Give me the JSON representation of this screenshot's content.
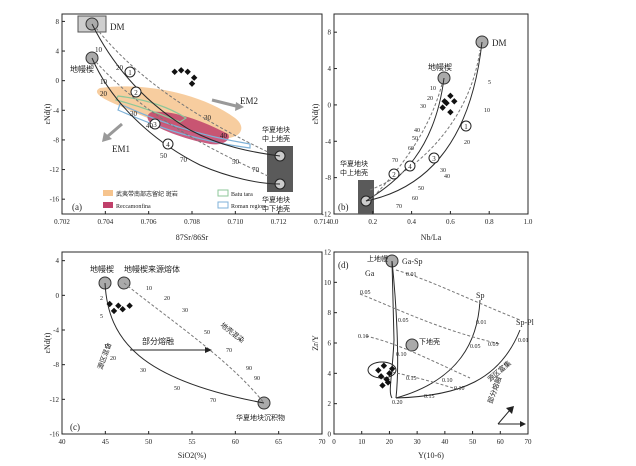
{
  "figure": {
    "panels": [
      {
        "id": "a",
        "panel_label": "(a)",
        "xlabel": "87Sr/86Sr",
        "ylabel": "εNd(t)",
        "xlim": [
          0.702,
          0.714
        ],
        "ylim": [
          -18,
          9
        ],
        "x_ticks": [
          0.702,
          0.704,
          0.706,
          0.708,
          0.71,
          0.712,
          0.714
        ],
        "x_tick_labels": [
          "0.702",
          "0.704",
          "0.706",
          "0.708",
          "0.710",
          "0.712",
          "0.714"
        ],
        "y_ticks": [
          8,
          4,
          0,
          -4,
          -8,
          -12,
          -16
        ],
        "y_tick_labels": [
          "8",
          "4",
          "0",
          "-4",
          "-8",
          "-12",
          "-16"
        ],
        "labels": {
          "dm": "DM",
          "mantle": "地幔楔",
          "em2": "EM2",
          "em1": "EM1",
          "crust_mid_upper": "华夏地块\n中上地壳",
          "crust_lower": "华夏地块\n中下地壳"
        },
        "legend": [
          {
            "label": "武夷带南部志留纪 斑岩",
            "color": "#f6c48e"
          },
          {
            "label": "Batu tara",
            "color": "#8ec79a"
          },
          {
            "label": "Reccamonfina",
            "color": "#c0406a"
          },
          {
            "label": "Roman region",
            "color": "#7fb2d8"
          }
        ],
        "samples": {
          "x": [
            0.7072,
            0.7075,
            0.7078,
            0.7081,
            0.708
          ],
          "y": [
            1.2,
            1.4,
            1.2,
            0.4,
            -0.4
          ]
        },
        "mixing_curves": [
          {
            "ticks": [
              "10",
              "20",
              "30",
              "40",
              "50",
              "70"
            ]
          },
          {
            "ticks": [
              "10",
              "20",
              "30",
              "40",
              "50",
              "70"
            ]
          }
        ],
        "mixing_circles": [
          "1",
          "2",
          "3",
          "4"
        ]
      },
      {
        "id": "b",
        "panel_label": "(b)",
        "xlabel": "Nb/La",
        "ylabel": "εNd(t)",
        "xlim": [
          0.0,
          1.0
        ],
        "ylim": [
          -12,
          10
        ],
        "x_ticks": [
          0.0,
          0.2,
          0.4,
          0.6,
          0.8,
          1.0
        ],
        "x_tick_labels": [
          "0.0",
          "0.2",
          "0.4",
          "0.6",
          "0.8",
          "1.0"
        ],
        "y_ticks": [
          8,
          4,
          0,
          -4,
          -8,
          -12
        ],
        "y_tick_labels": [
          "8",
          "4",
          "0",
          "-4",
          "-8",
          "-12"
        ],
        "labels": {
          "dm": "DM",
          "mantle": "地幔楔",
          "crust": "华夏地块\n中上地壳"
        },
        "samples": {
          "x": [
            0.56,
            0.58,
            0.6,
            0.62,
            0.57,
            0.6
          ],
          "y": [
            -0.3,
            0.2,
            -0.8,
            0.4,
            0.4,
            1.0
          ]
        },
        "mixing_curves": [
          {
            "ticks": [
              "10",
              "20",
              "30",
              "40",
              "50",
              "60",
              "70"
            ]
          },
          {
            "ticks": [
              "5",
              "10",
              "20",
              "30",
              "40",
              "50",
              "60",
              "70"
            ]
          }
        ],
        "mixing_circles": [
          "1",
          "2",
          "3",
          "4"
        ]
      },
      {
        "id": "c",
        "panel_label": "(c)",
        "xlabel": "SiO2(%)",
        "ylabel": "εNd(t)",
        "xlim": [
          40,
          70
        ],
        "ylim": [
          -16,
          5
        ],
        "x_ticks": [
          40,
          45,
          50,
          55,
          60,
          65,
          70
        ],
        "x_tick_labels": [
          "40",
          "45",
          "50",
          "55",
          "60",
          "65",
          "70"
        ],
        "y_ticks": [
          4,
          0,
          -4,
          -8,
          -12,
          -16
        ],
        "y_tick_labels": [
          "4",
          "0",
          "-4",
          "-8",
          "-12",
          "-16"
        ],
        "labels": {
          "mantle": "地幔楔",
          "mantle_melt": "地幔楔来源熔体",
          "partial_melting": "部分熔融",
          "crust_mixing": "地壳混染",
          "source_mixing": "源区混合",
          "sediment": "华夏地块沉积物"
        },
        "samples": {
          "x": [
            45.5,
            46.0,
            46.5,
            47.0,
            47.8
          ],
          "y": [
            -1.0,
            -1.8,
            -1.2,
            -1.6,
            -1.2
          ]
        },
        "mixing_curves": [
          {
            "ticks": [
              "2",
              "5",
              "15",
              "20",
              "30",
              "50",
              "70",
              "90"
            ]
          },
          {
            "ticks": [
              "10",
              "20",
              "30",
              "50",
              "70",
              "90"
            ]
          }
        ]
      },
      {
        "id": "d",
        "panel_label": "(d)",
        "xlabel": "Y(10-6)",
        "ylabel": "Zr/Y",
        "xlim": [
          0,
          70
        ],
        "ylim": [
          0,
          12
        ],
        "x_ticks": [
          0,
          10,
          20,
          30,
          40,
          50,
          60,
          70
        ],
        "x_tick_labels": [
          "0",
          "10",
          "20",
          "30",
          "40",
          "50",
          "60",
          "70"
        ],
        "y_ticks": [
          0,
          2,
          4,
          6,
          8,
          10,
          12
        ],
        "y_tick_labels": [
          "0",
          "2",
          "4",
          "6",
          "8",
          "10",
          "12"
        ],
        "labels": {
          "upper_mantle": "上地幔",
          "ga_sp": "Ga-Sp",
          "ga": "Ga",
          "sp": "Sp",
          "sp_pl": "Sp-Pl",
          "lower_crust": "下地壳",
          "source_enrich": "源区富集",
          "partial_melt": "部分熔融"
        },
        "samples": {
          "x": [
            16,
            17,
            18,
            19,
            20,
            21,
            17.5,
            19.5
          ],
          "y": [
            4.2,
            3.8,
            4.5,
            3.6,
            4.0,
            4.3,
            3.2,
            3.4
          ]
        },
        "melt_fraction_labels": [
          "0.01",
          "0.05",
          "0.10",
          "0.15",
          "0.20"
        ]
      }
    ]
  },
  "colors": {
    "line": "#2a2a2a",
    "dashed": "#777777",
    "box_dark": "#5a5a5a",
    "box_light": "#cfcfcf",
    "sample": "#111111",
    "field_orange": "#f6c48e",
    "field_red": "#c0406a",
    "field_green": "#8ec79a",
    "field_blue": "#7fb2d8"
  }
}
